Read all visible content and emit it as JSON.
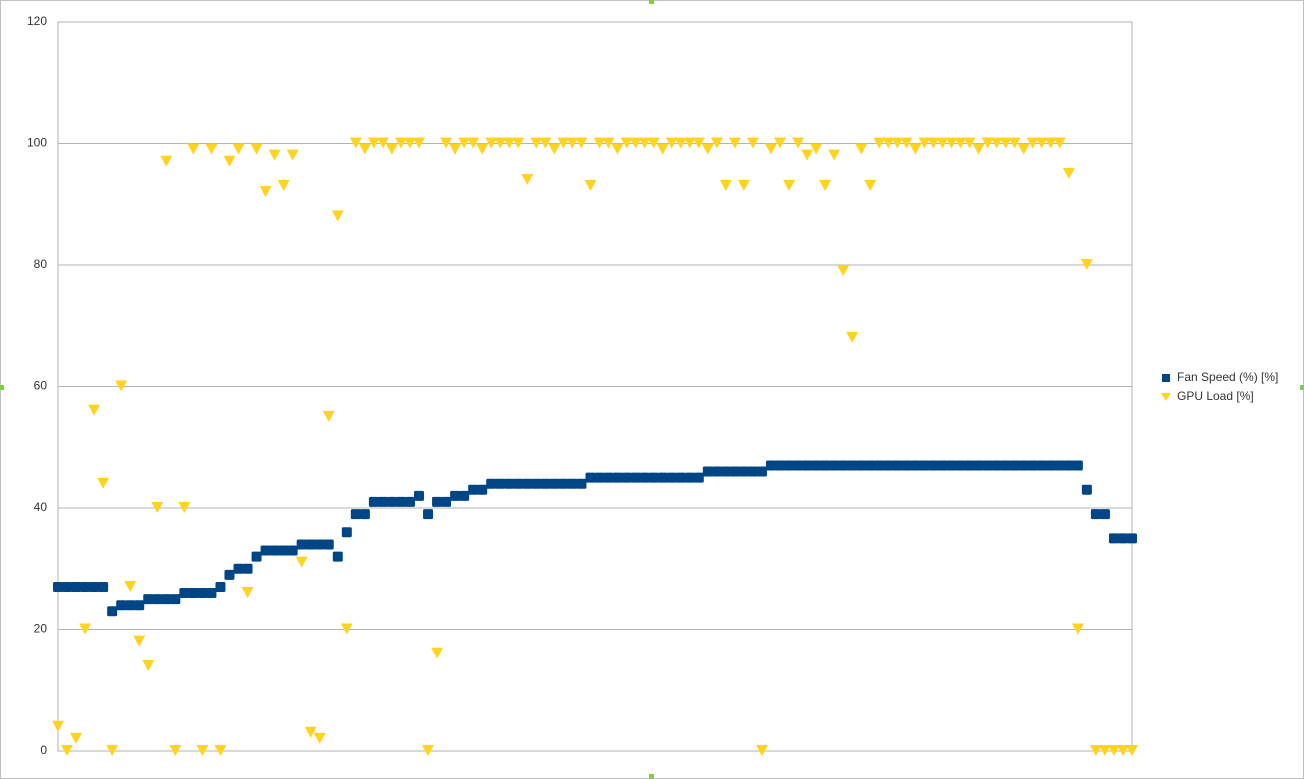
{
  "chart_data": {
    "type": "scatter",
    "ylim": [
      0,
      120
    ],
    "yticks": [
      0,
      20,
      40,
      60,
      80,
      100,
      120
    ],
    "grid": true,
    "legend": "right",
    "series": [
      {
        "name": "Fan Speed (%) [%]",
        "color": "#004586",
        "marker": "square",
        "values": [
          27,
          27,
          27,
          27,
          27,
          27,
          23,
          24,
          24,
          24,
          25,
          25,
          25,
          25,
          26,
          26,
          26,
          26,
          27,
          29,
          30,
          30,
          32,
          33,
          33,
          33,
          33,
          34,
          34,
          34,
          34,
          32,
          36,
          39,
          39,
          41,
          41,
          41,
          41,
          41,
          42,
          39,
          41,
          41,
          42,
          42,
          43,
          43,
          44,
          44,
          44,
          44,
          44,
          44,
          44,
          44,
          44,
          44,
          44,
          45,
          45,
          45,
          45,
          45,
          45,
          45,
          45,
          45,
          45,
          45,
          45,
          45,
          46,
          46,
          46,
          46,
          46,
          46,
          46,
          47,
          47,
          47,
          47,
          47,
          47,
          47,
          47,
          47,
          47,
          47,
          47,
          47,
          47,
          47,
          47,
          47,
          47,
          47,
          47,
          47,
          47,
          47,
          47,
          47,
          47,
          47,
          47,
          47,
          47,
          47,
          47,
          47,
          47,
          47,
          43,
          39,
          39,
          35,
          35,
          35
        ]
      },
      {
        "name": "GPU Load [%]",
        "color": "#ffd320",
        "marker": "triangle-down",
        "values": [
          4,
          0,
          2,
          20,
          56,
          44,
          0,
          60,
          27,
          18,
          14,
          40,
          97,
          0,
          40,
          99,
          0,
          99,
          0,
          97,
          99,
          26,
          99,
          92,
          98,
          93,
          98,
          31,
          3,
          2,
          55,
          88,
          20,
          100,
          99,
          100,
          100,
          99,
          100,
          100,
          100,
          0,
          16,
          100,
          99,
          100,
          100,
          99,
          100,
          100,
          100,
          100,
          94,
          100,
          100,
          99,
          100,
          100,
          100,
          93,
          100,
          100,
          99,
          100,
          100,
          100,
          100,
          99,
          100,
          100,
          100,
          100,
          99,
          100,
          93,
          100,
          93,
          100,
          0,
          99,
          100,
          93,
          100,
          98,
          99,
          93,
          98,
          79,
          68,
          99,
          93,
          100,
          100,
          100,
          100,
          99,
          100,
          100,
          100,
          100,
          100,
          100,
          99,
          100,
          100,
          100,
          100,
          99,
          100,
          100,
          100,
          100,
          95,
          20,
          80,
          0,
          0,
          0,
          0,
          0
        ]
      }
    ]
  }
}
